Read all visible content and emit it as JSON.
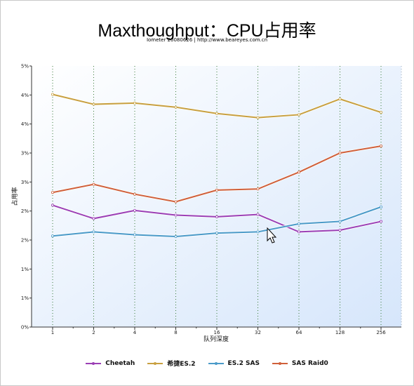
{
  "chart_data": {
    "type": "line",
    "title": "Maxthoughput：CPU占用率",
    "subtitle": "Iometer 20080626 | http://www.beareyes.com.cn",
    "xlabel": "队列深度",
    "ylabel": "占用率",
    "categories": [
      "1",
      "2",
      "4",
      "8",
      "16",
      "32",
      "64",
      "128",
      "256"
    ],
    "y_tick_labels": [
      "0%",
      "1%",
      "1%",
      "2%",
      "2%",
      "3%",
      "3%",
      "4%",
      "4%",
      "5%"
    ],
    "ylim": [
      0,
      4.5
    ],
    "grid": "vertical dotted",
    "legend_position": "bottom",
    "series": [
      {
        "name": "Cheetah",
        "color": "#9b3fb5",
        "values": [
          2.1,
          1.87,
          2.01,
          1.93,
          1.9,
          1.94,
          1.64,
          1.67,
          1.82
        ]
      },
      {
        "name": "希捷ES.2",
        "color": "#c8a040",
        "values": [
          4.01,
          3.84,
          3.86,
          3.79,
          3.68,
          3.61,
          3.66,
          3.93,
          3.7
        ]
      },
      {
        "name": "ES.2 SAS",
        "color": "#4a9ac8",
        "values": [
          1.57,
          1.64,
          1.59,
          1.56,
          1.62,
          1.64,
          1.78,
          1.82,
          2.07
        ]
      },
      {
        "name": "SAS Raid0",
        "color": "#d0603a",
        "values": [
          2.32,
          2.46,
          2.29,
          2.16,
          2.36,
          2.38,
          2.67,
          3.0,
          3.12
        ]
      }
    ]
  }
}
